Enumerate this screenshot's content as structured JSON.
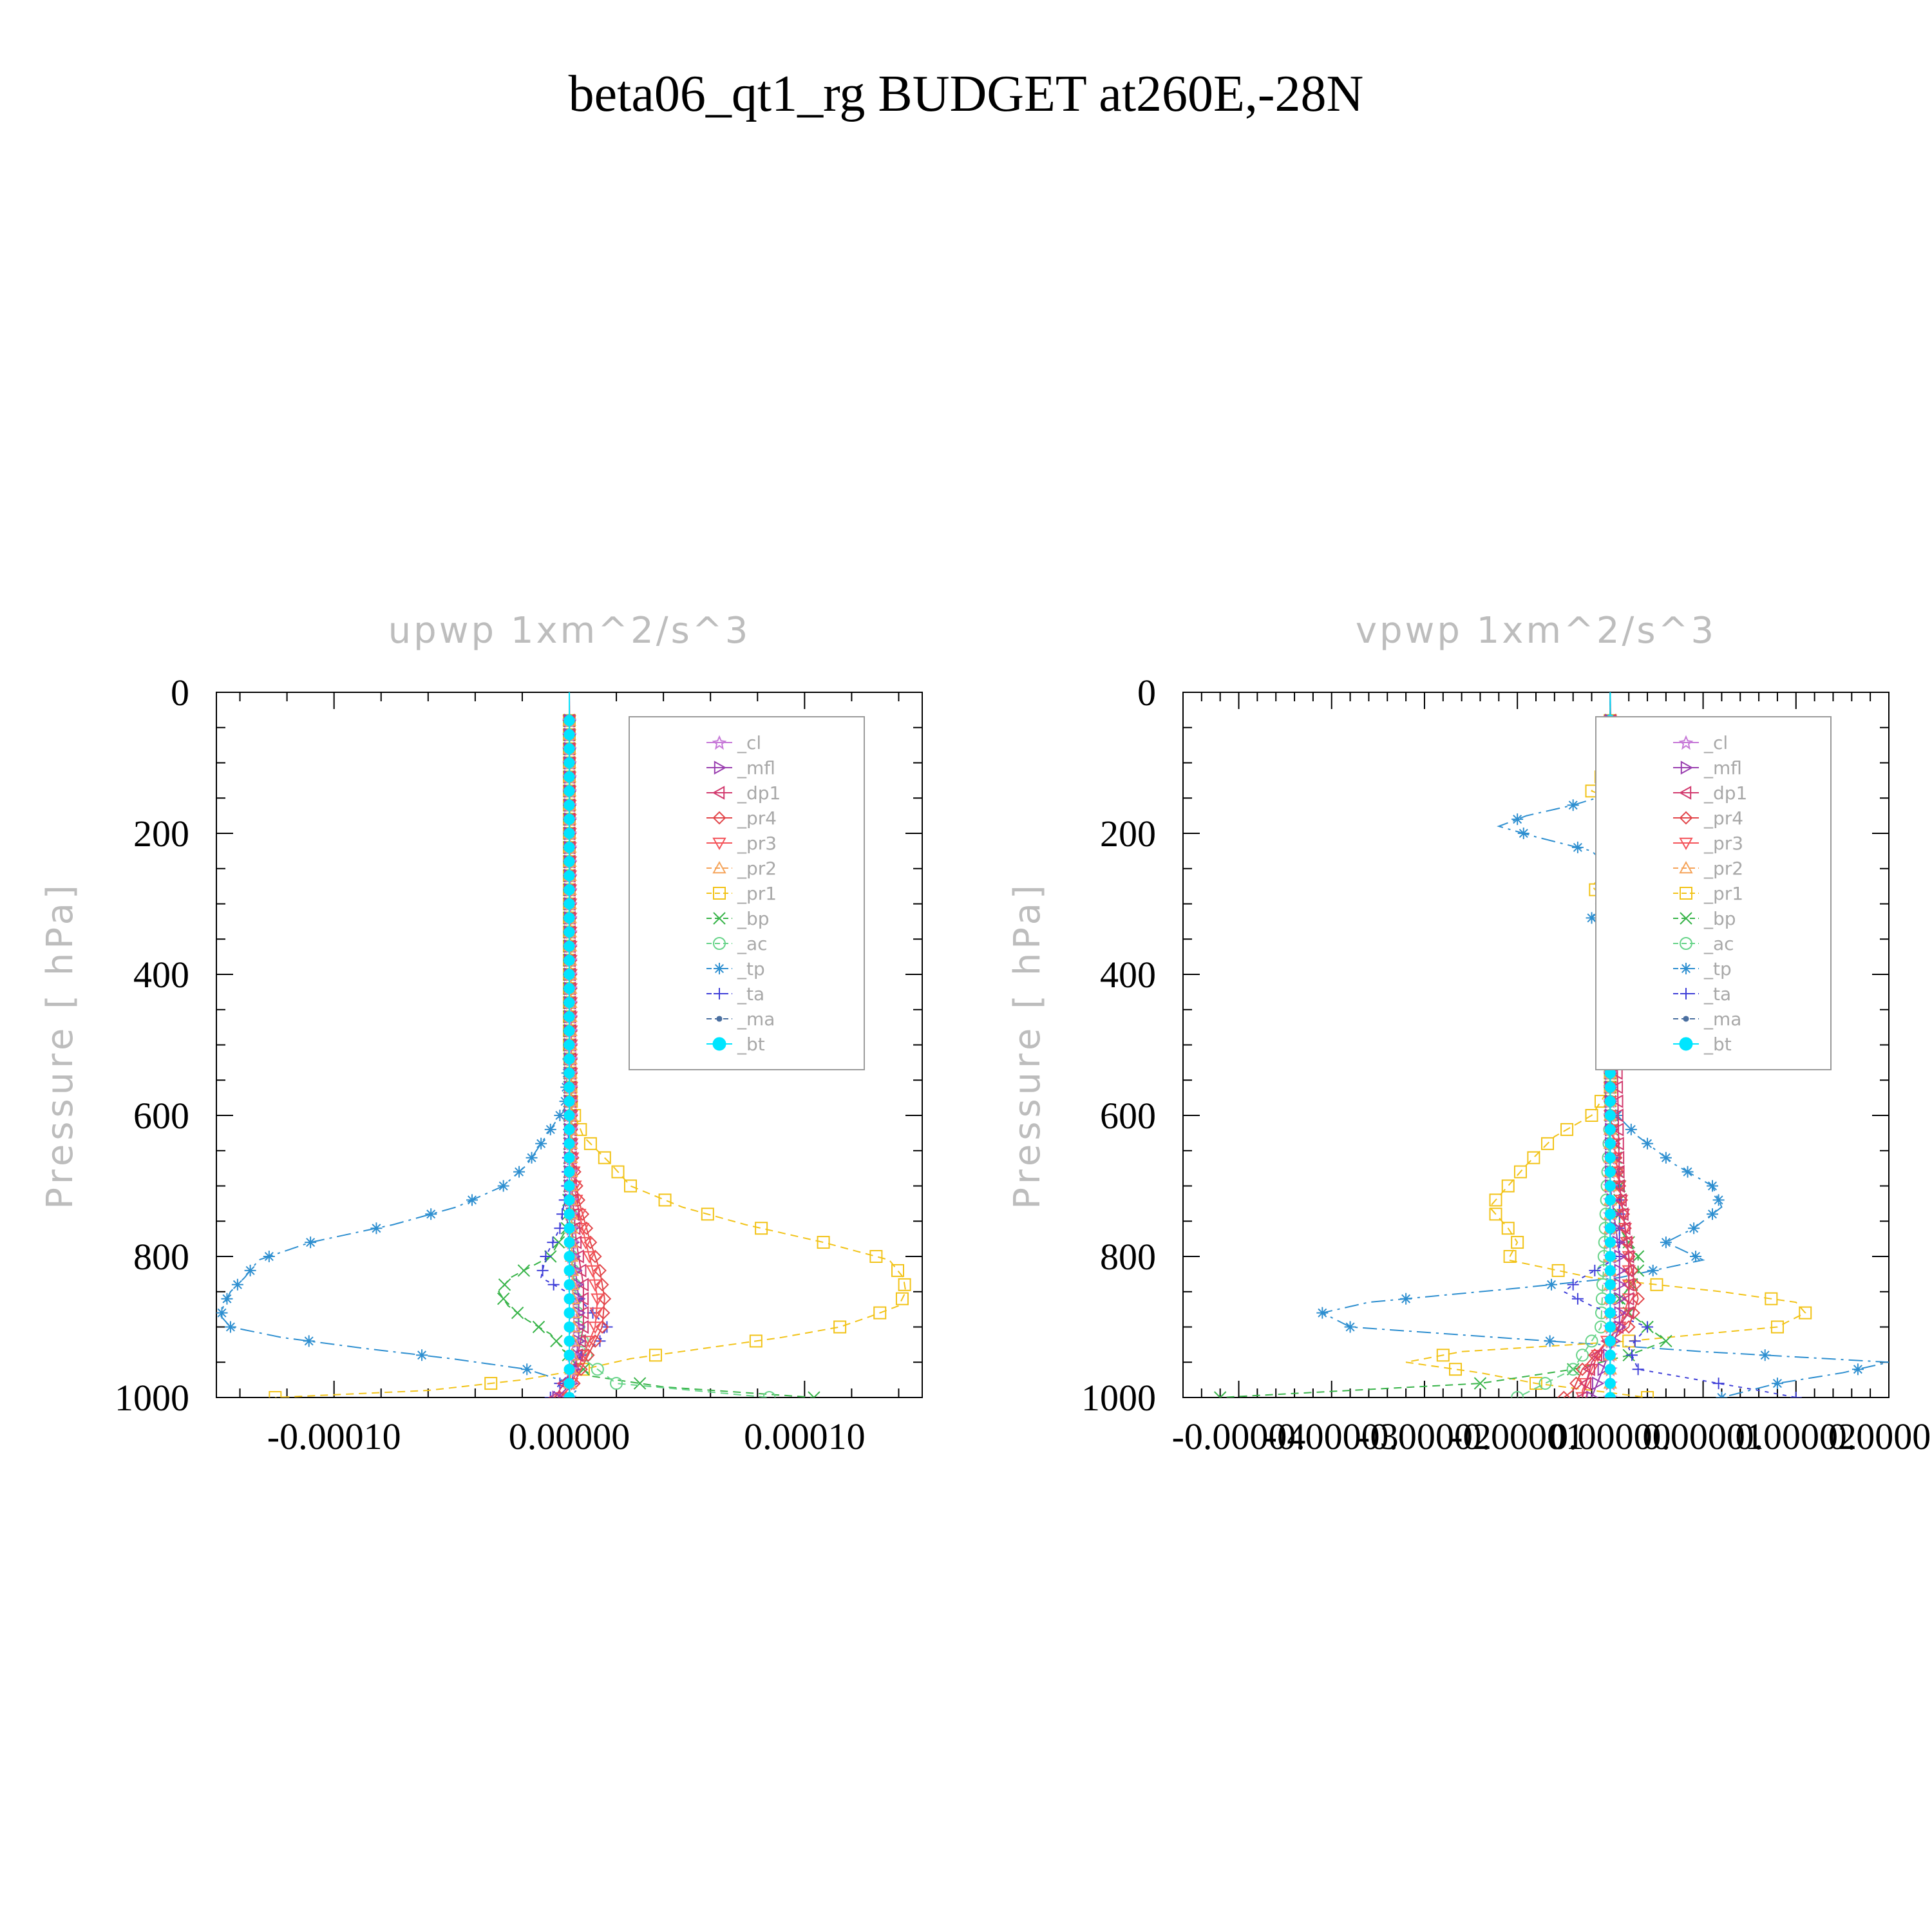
{
  "figure_title": "beta06_qt1_rg  BUDGET at260E,-28N",
  "legend_entries": [
    {
      "name": "_cl",
      "color": "#c77ad8",
      "marker": "star"
    },
    {
      "name": "_mfl",
      "color": "#9a3fb0",
      "marker": "tri-right"
    },
    {
      "name": "_dp1",
      "color": "#d23a6e",
      "marker": "tri-left"
    },
    {
      "name": "_pr4",
      "color": "#e2474b",
      "marker": "diamond"
    },
    {
      "name": "_pr3",
      "color": "#f4545a",
      "marker": "tri-down"
    },
    {
      "name": "_pr2",
      "color": "#f5a45a",
      "marker": "tri-up"
    },
    {
      "name": "_pr1",
      "color": "#f2c318",
      "marker": "square"
    },
    {
      "name": "_bp",
      "color": "#38b449",
      "marker": "x"
    },
    {
      "name": "_ac",
      "color": "#68d48a",
      "marker": "circle"
    },
    {
      "name": "_tp",
      "color": "#2e8fd0",
      "marker": "asterisk"
    },
    {
      "name": "_ta",
      "color": "#3f3fd8",
      "marker": "plus"
    },
    {
      "name": "_ma",
      "color": "#4a6fa0",
      "marker": "dot"
    },
    {
      "name": "_bt",
      "color": "#00e5ff",
      "marker": "filled-circle"
    }
  ],
  "chart_data": [
    {
      "type": "line",
      "title": "upwp    1xm^2/s^3",
      "ylabel": "Pressure  [ hPa]",
      "xlabel": "",
      "ylim": [
        1000,
        0
      ],
      "xlim": [
        -0.00015,
        0.00015
      ],
      "yticks": [
        0,
        200,
        400,
        600,
        800,
        1000
      ],
      "xtick_values": [
        -0.0001,
        0.0,
        0.0001
      ],
      "xtick_labels": [
        "-0.00010",
        "0.00000",
        "0.00010"
      ],
      "legend_position": "top-right",
      "grid": false,
      "series": [
        {
          "name": "_tp",
          "y": [
            0,
            100,
            200,
            300,
            400,
            500,
            590,
            630,
            670,
            700,
            730,
            755,
            780,
            805,
            830,
            850,
            870,
            885,
            900,
            915,
            930,
            945,
            960,
            975,
            990,
            1000
          ],
          "values": [
            0,
            0,
            0,
            0,
            0,
            0,
            -2e-06,
            -1e-05,
            -1.8e-05,
            -2.8e-05,
            -4.8e-05,
            -7.5e-05,
            -0.00011,
            -0.000132,
            -0.000138,
            -0.000144,
            -0.000147,
            -0.000148,
            -0.000144,
            -0.000122,
            -8.8e-05,
            -5e-05,
            -1.8e-05,
            -4e-06,
            3e-06,
            0
          ]
        },
        {
          "name": "_pr1",
          "y": [
            0,
            100,
            200,
            300,
            400,
            500,
            590,
            630,
            670,
            700,
            730,
            755,
            780,
            805,
            830,
            850,
            870,
            885,
            900,
            915,
            930,
            945,
            960,
            975,
            990,
            1000
          ],
          "values": [
            0,
            0,
            0,
            0,
            0,
            0,
            1e-06,
            6e-06,
            1.8e-05,
            2.6e-05,
            4.8e-05,
            7.5e-05,
            0.000108,
            0.000136,
            0.000142,
            0.000143,
            0.00014,
            0.000128,
            0.000115,
            9e-05,
            5.8e-05,
            2.6e-05,
            6e-06,
            -2e-05,
            -6e-05,
            -0.000125
          ]
        },
        {
          "name": "_bp",
          "y": [
            0,
            100,
            200,
            300,
            400,
            500,
            600,
            700,
            760,
            800,
            830,
            850,
            870,
            890,
            910,
            930,
            950,
            970,
            985,
            1000
          ],
          "values": [
            0,
            0,
            0,
            0,
            0,
            0,
            0,
            0,
            -1e-06,
            -8e-06,
            -2.5e-05,
            -3e-05,
            -2.6e-05,
            -1.8e-05,
            -8e-06,
            -3e-06,
            2e-06,
            1e-05,
            4e-05,
            0.000104
          ]
        },
        {
          "name": "_ac",
          "y": [
            0,
            500,
            800,
            900,
            950,
            980,
            1000
          ],
          "values": [
            0,
            0,
            1e-06,
            4e-06,
            8e-06,
            2e-05,
            8.5e-05
          ]
        },
        {
          "name": "_ta",
          "y": [
            0,
            600,
            700,
            760,
            800,
            830,
            860,
            880,
            900,
            920,
            940,
            960,
            980,
            1000
          ],
          "values": [
            0,
            0,
            -1e-06,
            -4e-06,
            -1e-05,
            -1.2e-05,
            4e-06,
            1e-05,
            1.6e-05,
            1.3e-05,
            5e-06,
            2e-06,
            -4e-06,
            -8e-06
          ]
        },
        {
          "name": "_pr4",
          "y": [
            0,
            650,
            720,
            780,
            820,
            860,
            900,
            940,
            980,
            1000
          ],
          "values": [
            0,
            1e-06,
            4e-06,
            9e-06,
            1.3e-05,
            1.5e-05,
            1.4e-05,
            8e-06,
            2e-06,
            -4e-06
          ]
        },
        {
          "name": "_pr3",
          "y": [
            0,
            650,
            720,
            780,
            820,
            860,
            900,
            940,
            980,
            1000
          ],
          "values": [
            0,
            1e-06,
            3e-06,
            7e-06,
            1e-05,
            1.2e-05,
            1.1e-05,
            6e-06,
            1e-06,
            -3e-06
          ]
        },
        {
          "name": "_dp1",
          "y": [
            0,
            700,
            780,
            840,
            900,
            950,
            1000
          ],
          "values": [
            0,
            1e-06,
            3e-06,
            6e-06,
            6e-06,
            3e-06,
            -6e-06
          ]
        },
        {
          "name": "_mfl",
          "y": [
            0,
            700,
            800,
            860,
            920,
            980,
            1000
          ],
          "values": [
            0,
            0,
            2e-06,
            4e-06,
            4e-06,
            1e-06,
            -5e-06
          ]
        },
        {
          "name": "_cl",
          "y": [
            0,
            800,
            900,
            1000
          ],
          "values": [
            0,
            1e-06,
            2e-06,
            0
          ]
        },
        {
          "name": "_pr2",
          "y": [
            0,
            800,
            900,
            1000
          ],
          "values": [
            0,
            1e-06,
            2e-06,
            0
          ]
        },
        {
          "name": "_ma",
          "y": [
            0,
            500,
            800,
            1000
          ],
          "values": [
            0,
            0,
            0,
            0
          ]
        },
        {
          "name": "_bt",
          "y": [
            0,
            500,
            800,
            1000
          ],
          "values": [
            0,
            0,
            0,
            0
          ]
        }
      ]
    },
    {
      "type": "line",
      "title": "vpwp    1xm^2/s^3",
      "ylabel": "Pressure  [ hPa]",
      "xlabel": "",
      "ylim": [
        1000,
        0
      ],
      "xlim": [
        -4.6e-05,
        3e-05
      ],
      "yticks": [
        0,
        200,
        400,
        600,
        800,
        1000
      ],
      "xtick_values": [
        -4e-05,
        -3e-05,
        -2e-05,
        -1e-05,
        0.0,
        1e-05,
        2e-05,
        3e-05
      ],
      "xtick_labels": [
        "-0.00004",
        "-0.00003",
        "-0.00002",
        "-0.00001",
        "0.00000",
        "0.00001",
        "0.00002",
        "0.00003"
      ],
      "legend_position": "top-right",
      "grid": false,
      "series": [
        {
          "name": "_tp",
          "y": [
            0,
            100,
            140,
            160,
            175,
            190,
            205,
            225,
            250,
            275,
            300,
            320,
            340,
            400,
            500,
            590,
            630,
            670,
            700,
            730,
            760,
            780,
            805,
            830,
            845,
            865,
            880,
            900,
            915,
            935,
            950,
            965,
            980,
            1000
          ],
          "values": [
            0,
            0,
            1e-06,
            -4e-06,
            -9e-06,
            -1.2e-05,
            -8e-06,
            -2e-06,
            0.0,
            1e-06,
            -1e-06,
            -2e-06,
            0.0,
            0.0,
            0.0,
            0.0,
            3e-06,
            7e-06,
            1.1e-05,
            1.2e-05,
            9e-06,
            6e-06,
            1e-05,
            1e-06,
            -1e-05,
            -2.6e-05,
            -3.1e-05,
            -2.8e-05,
            -1.2e-05,
            1e-05,
            3e-05,
            2.5e-05,
            1.8e-05,
            1.2e-05
          ]
        },
        {
          "name": "_pr1",
          "y": [
            0,
            100,
            140,
            160,
            175,
            190,
            205,
            225,
            250,
            275,
            300,
            320,
            340,
            400,
            500,
            560,
            600,
            630,
            670,
            700,
            730,
            760,
            780,
            805,
            830,
            850,
            865,
            880,
            900,
            920,
            935,
            950,
            965,
            980,
            1000
          ],
          "values": [
            0,
            0,
            -2e-06,
            2e-06,
            6e-06,
            8e-06,
            4e-06,
            1e-06,
            0.0,
            -2e-06,
            0.0,
            2e-06,
            0.0,
            0.0,
            0.0,
            0.0,
            -2e-06,
            -6e-06,
            -9e-06,
            -1.1e-05,
            -1.3e-05,
            -1.1e-05,
            -1e-05,
            -1.1e-05,
            -2e-06,
            1.2e-05,
            2e-05,
            2.1e-05,
            1.8e-05,
            2e-06,
            -1.6e-05,
            -2.2e-05,
            -1.4e-05,
            -8e-06,
            4e-06
          ]
        },
        {
          "name": "_bp",
          "y": [
            0,
            600,
            700,
            760,
            800,
            830,
            860,
            880,
            900,
            920,
            940,
            960,
            980,
            1000
          ],
          "values": [
            0,
            0,
            1e-06,
            1e-06,
            3e-06,
            3e-06,
            1e-06,
            2e-06,
            4e-06,
            6e-06,
            2e-06,
            -4e-06,
            -1.4e-05,
            -4.2e-05
          ]
        },
        {
          "name": "_ac",
          "y": [
            0,
            600,
            900,
            960,
            1000
          ],
          "values": [
            0,
            0,
            -1e-06,
            -4e-06,
            -1e-05
          ]
        },
        {
          "name": "_ta",
          "y": [
            0,
            300,
            600,
            700,
            800,
            830,
            850,
            870,
            900,
            930,
            960,
            990,
            1000
          ],
          "values": [
            0,
            0,
            0,
            1e-06,
            1e-06,
            -3e-06,
            -5e-06,
            -2e-06,
            4e-06,
            2e-06,
            3e-06,
            1.6e-05,
            2e-05
          ]
        },
        {
          "name": "_pr4",
          "y": [
            0,
            600,
            700,
            800,
            860,
            900,
            930,
            960,
            990,
            1000
          ],
          "values": [
            0,
            0,
            1e-06,
            2e-06,
            3e-06,
            2e-06,
            -1e-06,
            -3e-06,
            -4e-06,
            -5e-06
          ]
        },
        {
          "name": "_pr3",
          "y": [
            0,
            600,
            700,
            800,
            860,
            900,
            930,
            960,
            990,
            1000
          ],
          "values": [
            0,
            0,
            1e-06,
            2e-06,
            2e-06,
            1e-06,
            -1e-06,
            -2e-06,
            -3e-06,
            -3e-06
          ]
        },
        {
          "name": "_dp1",
          "y": [
            0,
            700,
            800,
            880,
            950,
            1000
          ],
          "values": [
            0,
            1e-06,
            2e-06,
            2e-06,
            -2e-06,
            -3e-06
          ]
        },
        {
          "name": "_mfl",
          "y": [
            0,
            700,
            800,
            900,
            1000
          ],
          "values": [
            0,
            0,
            1e-06,
            1e-06,
            -2e-06
          ]
        },
        {
          "name": "_cl",
          "y": [
            0,
            800,
            1000
          ],
          "values": [
            0,
            0,
            0
          ]
        },
        {
          "name": "_pr2",
          "y": [
            0,
            800,
            1000
          ],
          "values": [
            0,
            0,
            0
          ]
        },
        {
          "name": "_ma",
          "y": [
            0,
            500,
            1000
          ],
          "values": [
            0,
            0,
            0
          ]
        },
        {
          "name": "_bt",
          "y": [
            0,
            500,
            1000
          ],
          "values": [
            0,
            0,
            0
          ]
        }
      ]
    }
  ]
}
